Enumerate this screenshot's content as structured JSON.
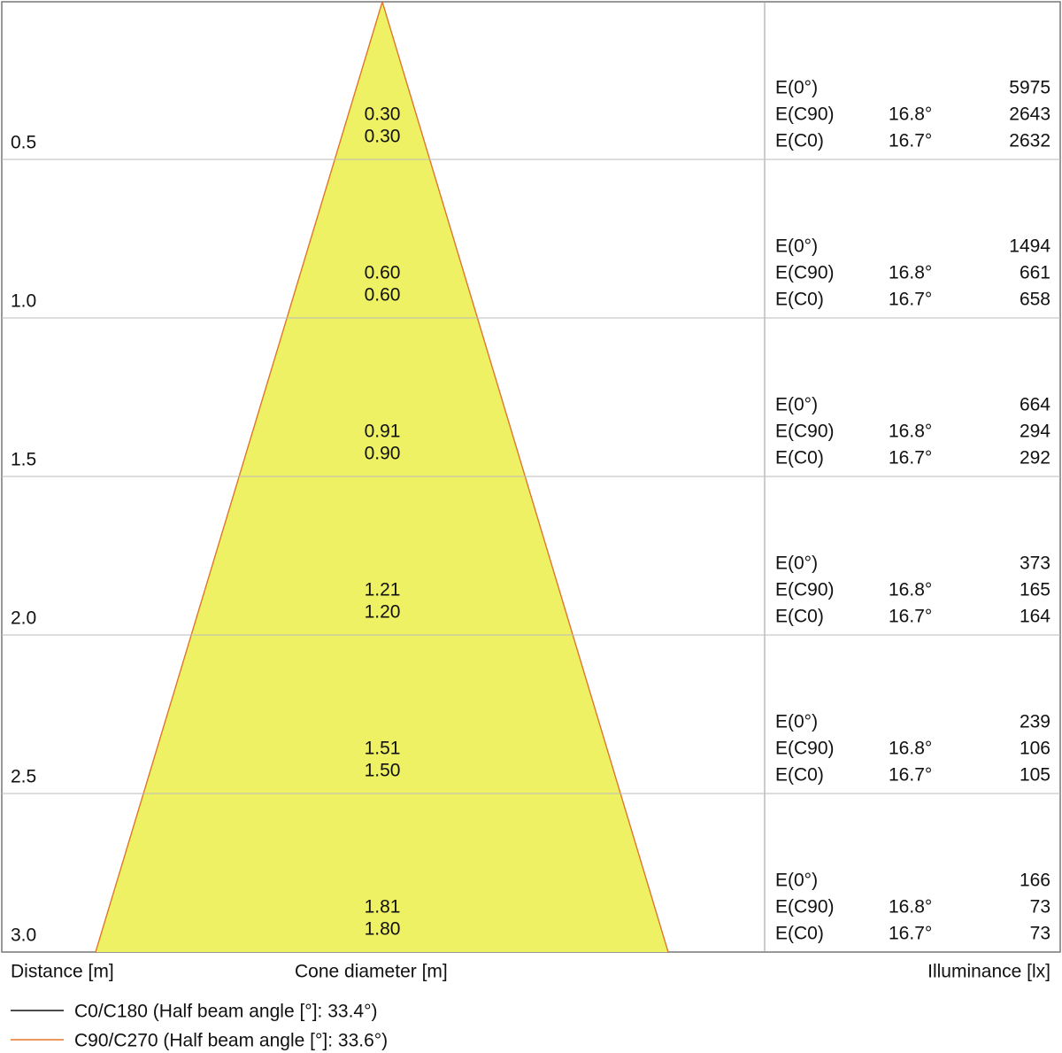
{
  "rows": [
    {
      "distance": "0.5",
      "diameters": [
        "0.30",
        "0.30"
      ],
      "illuminance": [
        {
          "label": "E(0°)",
          "angle": null,
          "value": "5975"
        },
        {
          "label": "E(C90)",
          "angle": "16.8°",
          "value": "2643"
        },
        {
          "label": "E(C0)",
          "angle": "16.7°",
          "value": "2632"
        }
      ]
    },
    {
      "distance": "1.0",
      "diameters": [
        "0.60",
        "0.60"
      ],
      "illuminance": [
        {
          "label": "E(0°)",
          "angle": null,
          "value": "1494"
        },
        {
          "label": "E(C90)",
          "angle": "16.8°",
          "value": "661"
        },
        {
          "label": "E(C0)",
          "angle": "16.7°",
          "value": "658"
        }
      ]
    },
    {
      "distance": "1.5",
      "diameters": [
        "0.91",
        "0.90"
      ],
      "illuminance": [
        {
          "label": "E(0°)",
          "angle": null,
          "value": "664"
        },
        {
          "label": "E(C90)",
          "angle": "16.8°",
          "value": "294"
        },
        {
          "label": "E(C0)",
          "angle": "16.7°",
          "value": "292"
        }
      ]
    },
    {
      "distance": "2.0",
      "diameters": [
        "1.21",
        "1.20"
      ],
      "illuminance": [
        {
          "label": "E(0°)",
          "angle": null,
          "value": "373"
        },
        {
          "label": "E(C90)",
          "angle": "16.8°",
          "value": "165"
        },
        {
          "label": "E(C0)",
          "angle": "16.7°",
          "value": "164"
        }
      ]
    },
    {
      "distance": "2.5",
      "diameters": [
        "1.51",
        "1.50"
      ],
      "illuminance": [
        {
          "label": "E(0°)",
          "angle": null,
          "value": "239"
        },
        {
          "label": "E(C90)",
          "angle": "16.8°",
          "value": "106"
        },
        {
          "label": "E(C0)",
          "angle": "16.7°",
          "value": "105"
        }
      ]
    },
    {
      "distance": "3.0",
      "diameters": [
        "1.81",
        "1.80"
      ],
      "illuminance": [
        {
          "label": "E(0°)",
          "angle": null,
          "value": "166"
        },
        {
          "label": "E(C90)",
          "angle": "16.8°",
          "value": "73"
        },
        {
          "label": "E(C0)",
          "angle": "16.7°",
          "value": "73"
        }
      ]
    }
  ],
  "axis_labels": {
    "distance": "Distance [m]",
    "diameter": "Cone diameter [m]",
    "illuminance": "Illuminance [lx]"
  },
  "legend": [
    {
      "name": "C0/C180 (Half beam angle [°]: 33.4°)",
      "color": "#111111"
    },
    {
      "name": "C90/C270 (Half beam angle [°]: 33.6°)",
      "color": "#e8772a"
    }
  ]
}
